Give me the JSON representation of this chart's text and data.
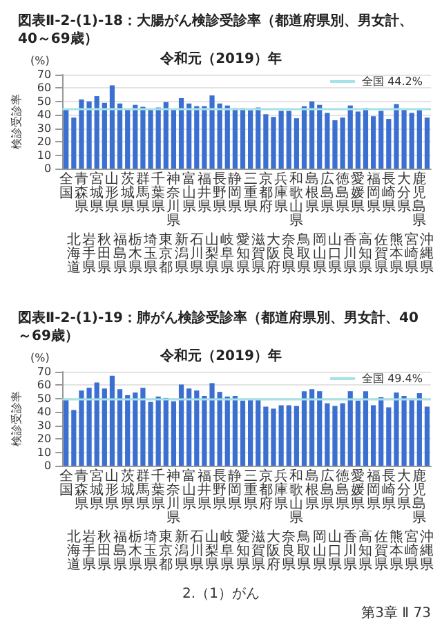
{
  "chart_data": [
    {
      "type": "bar",
      "title": "図表Ⅱ-2-(1)-18：大腸がん検診受診率（都道府県別、男女計、40～69歳）",
      "subtitle": "令和元（2019）年",
      "ylabel": "検診受診率",
      "annotations": [
        "(%)"
      ],
      "categories": [
        "全国",
        "北海道",
        "青森県",
        "岩手県",
        "宮城県",
        "秋田県",
        "山形県",
        "福島県",
        "茨城県",
        "栃木県",
        "群馬県",
        "埼玉県",
        "千葉県",
        "東京都",
        "神奈川県",
        "新潟県",
        "富山県",
        "石川県",
        "福井県",
        "山梨県",
        "長野県",
        "岐阜県",
        "静岡県",
        "愛知県",
        "三重県",
        "滋賀県",
        "京都府",
        "大阪府",
        "兵庫県",
        "奈良県",
        "和歌山県",
        "鳥取県",
        "島根県",
        "岡山県",
        "広島県",
        "山口県",
        "徳島県",
        "香川県",
        "愛媛県",
        "高知県",
        "福岡県",
        "佐賀県",
        "長崎県",
        "熊本県",
        "大分県",
        "宮崎県",
        "鹿児島県",
        "沖縄県"
      ],
      "values": [
        44.2,
        38,
        51.5,
        50,
        54,
        49,
        62,
        48.5,
        44.5,
        47.5,
        46,
        44.5,
        45.5,
        49.5,
        44,
        52.5,
        48.5,
        46.5,
        46.5,
        54.5,
        48.5,
        47,
        45,
        45,
        43.5,
        45.5,
        40.5,
        38.5,
        43,
        43,
        37.5,
        46.5,
        50,
        47.5,
        41.5,
        36,
        38,
        47,
        42.5,
        45,
        39,
        43,
        37,
        48,
        44.5,
        41.5,
        43.5,
        38
      ],
      "color": "#3b6fd0",
      "ylim": [
        0,
        70
      ],
      "yticks": [
        0,
        10,
        20,
        30,
        40,
        50,
        60,
        70
      ],
      "grid": "y",
      "ref_lines": [
        {
          "axis": "y",
          "value": 44.2,
          "label": "全国 44.2%",
          "color": "#a6e3e6"
        }
      ]
    },
    {
      "type": "bar",
      "title": "図表Ⅱ-2-(1)-19：肺がん検診受診率（都道府県別、男女計、40～69歳）",
      "subtitle": "令和元（2019）年",
      "ylabel": "検診受診率",
      "annotations": [
        "(%)",
        "2.（1）がん",
        "第3章 Ⅱ 73"
      ],
      "categories": [
        "全国",
        "北海道",
        "青森県",
        "岩手県",
        "宮城県",
        "秋田県",
        "山形県",
        "福島県",
        "茨城県",
        "栃木県",
        "群馬県",
        "埼玉県",
        "千葉県",
        "東京都",
        "神奈川県",
        "新潟県",
        "富山県",
        "石川県",
        "福井県",
        "山梨県",
        "長野県",
        "岐阜県",
        "静岡県",
        "愛知県",
        "三重県",
        "滋賀県",
        "京都府",
        "大阪府",
        "兵庫県",
        "奈良県",
        "和歌山県",
        "鳥取県",
        "島根県",
        "岡山県",
        "広島県",
        "山口県",
        "徳島県",
        "香川県",
        "愛媛県",
        "高知県",
        "福岡県",
        "佐賀県",
        "長崎県",
        "熊本県",
        "大分県",
        "宮崎県",
        "鹿児島県",
        "沖縄県"
      ],
      "values": [
        49.4,
        41.5,
        56,
        58,
        62,
        57.5,
        67,
        57,
        52.5,
        54.5,
        58,
        47.5,
        51.5,
        50.5,
        48,
        60.5,
        57.5,
        56,
        52,
        61.5,
        55,
        51.5,
        52,
        48.5,
        49,
        49,
        44,
        42.5,
        45,
        45,
        44.5,
        55.5,
        57,
        55.5,
        46.5,
        44.5,
        46.5,
        55.5,
        48.5,
        55.5,
        45,
        51,
        43.5,
        54.5,
        52,
        50,
        54,
        44
      ],
      "color": "#3b6fd0",
      "ylim": [
        0,
        70
      ],
      "yticks": [
        0,
        10,
        20,
        30,
        40,
        50,
        60,
        70
      ],
      "grid": "y",
      "ref_lines": [
        {
          "axis": "y",
          "value": 49.4,
          "label": "全国 49.4%",
          "color": "#a6e3e6"
        }
      ]
    }
  ]
}
